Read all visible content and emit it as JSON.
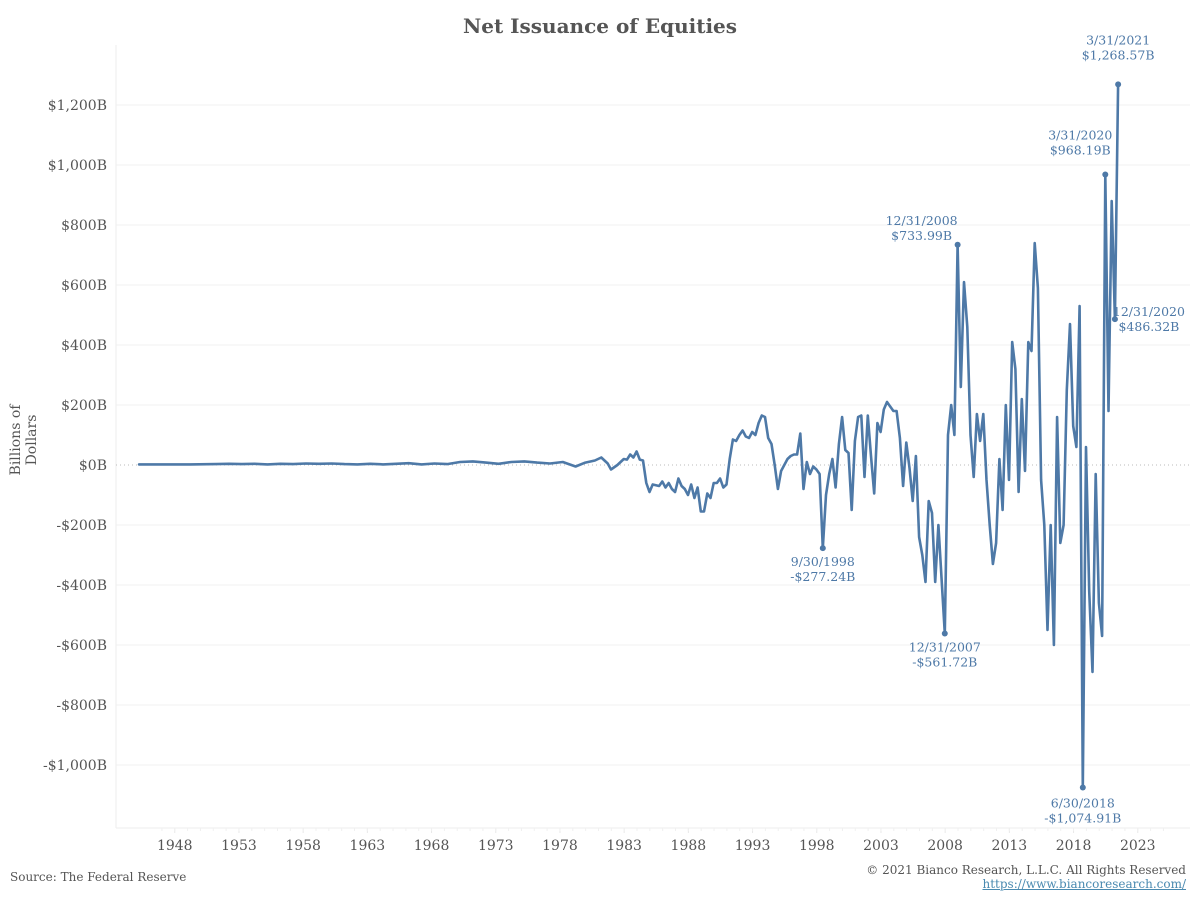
{
  "chart_data": {
    "type": "line",
    "title": "Net Issuance of Equities",
    "xlabel": "",
    "ylabel": "Billions of Dollars",
    "ylim": [
      -1200,
      1300
    ],
    "xlim": [
      1946.5,
      2025.5
    ],
    "grid": true,
    "legend": "none",
    "line_color": "#4e79a7",
    "yticks": [
      {
        "value": 1200,
        "label": "$1,200B"
      },
      {
        "value": 1000,
        "label": "$1,000B"
      },
      {
        "value": 800,
        "label": "$800B"
      },
      {
        "value": 600,
        "label": "$600B"
      },
      {
        "value": 400,
        "label": "$400B"
      },
      {
        "value": 200,
        "label": "$200B"
      },
      {
        "value": 0,
        "label": "$0B"
      },
      {
        "value": -200,
        "label": "-$200B"
      },
      {
        "value": -400,
        "label": "-$400B"
      },
      {
        "value": -600,
        "label": "-$600B"
      },
      {
        "value": -800,
        "label": "-$800B"
      },
      {
        "value": -1000,
        "label": "-$1,000B"
      }
    ],
    "xticks": [
      "1948",
      "1953",
      "1958",
      "1963",
      "1968",
      "1973",
      "1978",
      "1983",
      "1988",
      "1993",
      "1998",
      "2003",
      "2008",
      "2013",
      "2018",
      "2023"
    ],
    "series": [
      {
        "name": "Net Issuance of Equities",
        "points": [
          [
            1946.0,
            2
          ],
          [
            1948.0,
            2
          ],
          [
            1950.0,
            2
          ],
          [
            1952.0,
            3
          ],
          [
            1953.0,
            4
          ],
          [
            1954.0,
            3
          ],
          [
            1955.0,
            4
          ],
          [
            1956.0,
            2
          ],
          [
            1957.0,
            4
          ],
          [
            1958.0,
            3
          ],
          [
            1959.0,
            5
          ],
          [
            1960.0,
            4
          ],
          [
            1961.0,
            5
          ],
          [
            1962.0,
            3
          ],
          [
            1963.0,
            2
          ],
          [
            1964.0,
            4
          ],
          [
            1965.0,
            2
          ],
          [
            1966.0,
            4
          ],
          [
            1967.0,
            6
          ],
          [
            1968.0,
            2
          ],
          [
            1969.0,
            5
          ],
          [
            1970.0,
            3
          ],
          [
            1971.0,
            10
          ],
          [
            1972.0,
            12
          ],
          [
            1973.0,
            8
          ],
          [
            1974.0,
            4
          ],
          [
            1975.0,
            10
          ],
          [
            1976.0,
            12
          ],
          [
            1977.0,
            8
          ],
          [
            1978.0,
            5
          ],
          [
            1979.0,
            10
          ],
          [
            1980.0,
            -5
          ],
          [
            1980.75,
            8
          ],
          [
            1981.5,
            15
          ],
          [
            1982.0,
            25
          ],
          [
            1982.5,
            5
          ],
          [
            1982.75,
            -15
          ],
          [
            1983.25,
            0
          ],
          [
            1983.75,
            20
          ],
          [
            1984.0,
            18
          ],
          [
            1984.25,
            35
          ],
          [
            1984.5,
            25
          ],
          [
            1984.75,
            45
          ],
          [
            1985.0,
            18
          ],
          [
            1985.25,
            15
          ],
          [
            1985.5,
            -60
          ],
          [
            1985.75,
            -90
          ],
          [
            1986.0,
            -65
          ],
          [
            1986.5,
            -70
          ],
          [
            1986.75,
            -55
          ],
          [
            1987.0,
            -75
          ],
          [
            1987.25,
            -60
          ],
          [
            1987.5,
            -80
          ],
          [
            1987.75,
            -90
          ],
          [
            1988.0,
            -45
          ],
          [
            1988.25,
            -70
          ],
          [
            1988.5,
            -80
          ],
          [
            1988.75,
            -100
          ],
          [
            1989.0,
            -65
          ],
          [
            1989.25,
            -110
          ],
          [
            1989.5,
            -75
          ],
          [
            1989.75,
            -155
          ],
          [
            1990.0,
            -155
          ],
          [
            1990.25,
            -95
          ],
          [
            1990.5,
            -110
          ],
          [
            1990.75,
            -60
          ],
          [
            1991.0,
            -60
          ],
          [
            1991.25,
            -45
          ],
          [
            1991.5,
            -75
          ],
          [
            1991.75,
            -65
          ],
          [
            1992.0,
            20
          ],
          [
            1992.25,
            85
          ],
          [
            1992.5,
            80
          ],
          [
            1992.75,
            100
          ],
          [
            1993.0,
            115
          ],
          [
            1993.25,
            95
          ],
          [
            1993.5,
            90
          ],
          [
            1993.75,
            110
          ],
          [
            1994.0,
            100
          ],
          [
            1994.25,
            140
          ],
          [
            1994.5,
            165
          ],
          [
            1994.75,
            160
          ],
          [
            1995.0,
            90
          ],
          [
            1995.25,
            70
          ],
          [
            1995.5,
            0
          ],
          [
            1995.75,
            -80
          ],
          [
            1996.0,
            -20
          ],
          [
            1996.25,
            0
          ],
          [
            1996.5,
            20
          ],
          [
            1996.75,
            30
          ],
          [
            1997.0,
            35
          ],
          [
            1997.25,
            35
          ],
          [
            1997.5,
            105
          ],
          [
            1997.75,
            -80
          ],
          [
            1998.0,
            10
          ],
          [
            1998.25,
            -30
          ],
          [
            1998.5,
            -5
          ],
          [
            1998.75,
            -15
          ],
          [
            1999.0,
            -30
          ],
          [
            1999.25,
            -277.24
          ],
          [
            1999.5,
            -100
          ],
          [
            1999.75,
            -30
          ],
          [
            2000.0,
            20
          ],
          [
            2000.25,
            -75
          ],
          [
            2000.5,
            70
          ],
          [
            2000.75,
            160
          ],
          [
            2001.0,
            50
          ],
          [
            2001.25,
            40
          ],
          [
            2001.5,
            -150
          ],
          [
            2001.75,
            80
          ],
          [
            2002.0,
            160
          ],
          [
            2002.25,
            165
          ],
          [
            2002.5,
            -40
          ],
          [
            2002.75,
            165
          ],
          [
            2003.0,
            30
          ],
          [
            2003.25,
            -95
          ],
          [
            2003.5,
            140
          ],
          [
            2003.75,
            110
          ],
          [
            2004.0,
            185
          ],
          [
            2004.25,
            210
          ],
          [
            2004.5,
            195
          ],
          [
            2004.75,
            180
          ],
          [
            2005.0,
            180
          ],
          [
            2005.25,
            90
          ],
          [
            2005.5,
            -70
          ],
          [
            2005.75,
            75
          ],
          [
            2006.0,
            -10
          ],
          [
            2006.25,
            -120
          ],
          [
            2006.5,
            30
          ],
          [
            2006.75,
            -240
          ],
          [
            2007.0,
            -300
          ],
          [
            2007.25,
            -390
          ],
          [
            2007.5,
            -120
          ],
          [
            2007.75,
            -160
          ],
          [
            2008.0,
            -390
          ],
          [
            2008.25,
            -200
          ],
          [
            2008.75,
            -561.72
          ],
          [
            2009.0,
            100
          ],
          [
            2009.25,
            200
          ],
          [
            2009.5,
            100
          ],
          [
            2009.75,
            733.99
          ],
          [
            2010.0,
            260
          ],
          [
            2010.25,
            610
          ],
          [
            2010.5,
            460
          ],
          [
            2010.75,
            100
          ],
          [
            2011.0,
            -40
          ],
          [
            2011.25,
            170
          ],
          [
            2011.5,
            80
          ],
          [
            2011.75,
            170
          ],
          [
            2012.0,
            -50
          ],
          [
            2012.25,
            -200
          ],
          [
            2012.5,
            -330
          ],
          [
            2012.75,
            -260
          ],
          [
            2013.0,
            20
          ],
          [
            2013.25,
            -150
          ],
          [
            2013.5,
            200
          ],
          [
            2013.75,
            -50
          ],
          [
            2014.0,
            410
          ],
          [
            2014.25,
            320
          ],
          [
            2014.5,
            -90
          ],
          [
            2014.75,
            220
          ],
          [
            2015.0,
            -20
          ],
          [
            2015.25,
            410
          ],
          [
            2015.5,
            380
          ],
          [
            2015.75,
            740
          ],
          [
            2016.0,
            590
          ],
          [
            2016.25,
            -50
          ],
          [
            2016.5,
            -200
          ],
          [
            2016.75,
            -550
          ],
          [
            2017.0,
            -200
          ],
          [
            2017.25,
            -600
          ],
          [
            2017.5,
            160
          ],
          [
            2017.75,
            -260
          ],
          [
            2018.0,
            -200
          ],
          [
            2018.25,
            250
          ],
          [
            2018.5,
            470
          ],
          [
            2018.75,
            130
          ],
          [
            2019.0,
            60
          ],
          [
            2019.25,
            530
          ],
          [
            2019.5,
            -1074.91
          ],
          [
            2019.75,
            60
          ],
          [
            2020.0,
            -420
          ],
          [
            2020.25,
            -690
          ],
          [
            2020.5,
            -30
          ],
          [
            2020.75,
            -460
          ],
          [
            2021.0,
            -570
          ],
          [
            2021.25,
            968.19
          ],
          [
            2021.5,
            180
          ],
          [
            2021.75,
            880
          ],
          [
            2022.0,
            486.32
          ],
          [
            2022.25,
            1268.57
          ]
        ]
      }
    ],
    "annotations": [
      {
        "date": "3/31/2021",
        "value": 1268.57,
        "label_date": "3/31/2021",
        "label_value": "$1,268.57B"
      },
      {
        "date": "3/31/2020",
        "value": 968.19,
        "label_date": "3/31/2020",
        "label_value": "$968.19B"
      },
      {
        "date": "12/31/2020",
        "value": 486.32,
        "label_date": "12/31/2020",
        "label_value": "$486.32B"
      },
      {
        "date": "12/31/2008",
        "value": 733.99,
        "label_date": "12/31/2008",
        "label_value": "$733.99B"
      },
      {
        "date": "9/30/1998",
        "value": -277.24,
        "label_date": "9/30/1998",
        "label_value": "-$277.24B"
      },
      {
        "date": "12/31/2007",
        "value": -561.72,
        "label_date": "12/31/2007",
        "label_value": "-$561.72B"
      },
      {
        "date": "6/30/2018",
        "value": -1074.91,
        "label_date": "6/30/2018",
        "label_value": "-$1,074.91B"
      }
    ]
  },
  "footer": {
    "source": "Source: The Federal Reserve",
    "copyright": "© 2021 Bianco Research, L.L.C. All Rights Reserved",
    "url": "https://www.biancoresearch.com/"
  }
}
